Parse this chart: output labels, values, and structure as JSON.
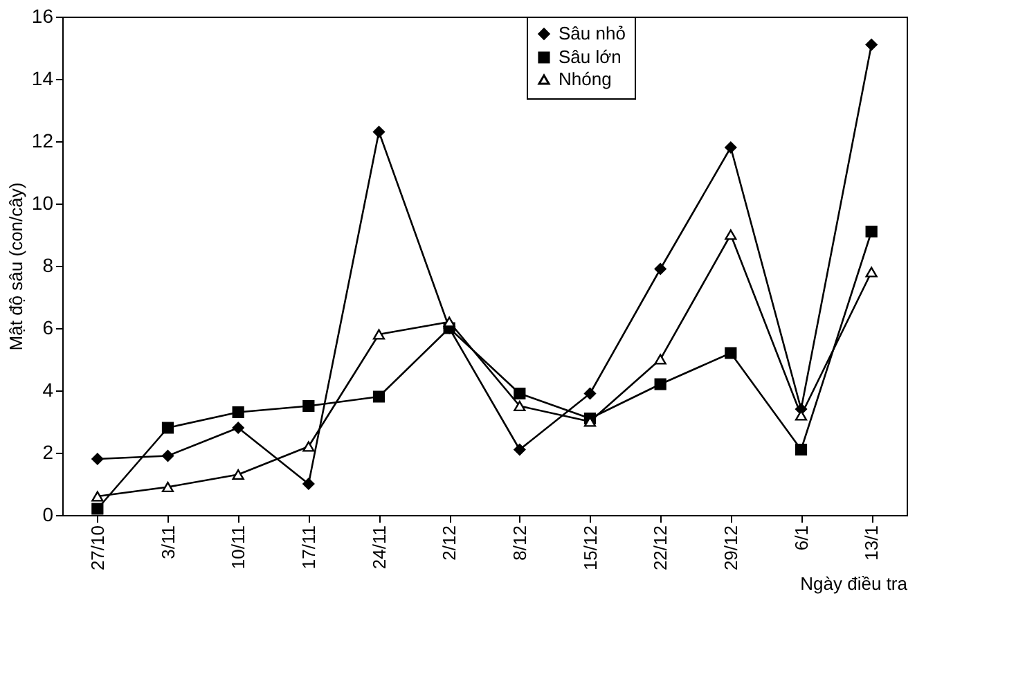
{
  "chart_data": {
    "type": "line",
    "xlabel": "Ngày điều tra",
    "ylabel": "Mật độ sâu (con/cây)",
    "categories": [
      "27/10",
      "3/11",
      "10/11",
      "17/11",
      "24/11",
      "2/12",
      "8/12",
      "15/12",
      "22/12",
      "29/12",
      "6/1",
      "13/1"
    ],
    "series": [
      {
        "name": "Sâu nhỏ",
        "color": "#000000",
        "marker": "diamond",
        "values": [
          1.8,
          1.9,
          2.8,
          1.0,
          12.3,
          6.0,
          2.1,
          3.9,
          7.9,
          11.8,
          3.4,
          15.1
        ]
      },
      {
        "name": "Sâu lớn",
        "color": "#000000",
        "marker": "square",
        "values": [
          0.2,
          2.8,
          3.3,
          3.5,
          3.8,
          6.0,
          3.9,
          3.1,
          4.2,
          5.2,
          2.1,
          9.1
        ]
      },
      {
        "name": "Nhóng",
        "color": "#000000",
        "marker": "triangle",
        "values": [
          0.6,
          0.9,
          1.3,
          2.2,
          5.8,
          6.2,
          3.5,
          3.0,
          5.0,
          9.0,
          3.2,
          7.8
        ]
      }
    ],
    "ylim": [
      0,
      16
    ],
    "yticks": [
      0,
      2,
      4,
      6,
      8,
      10,
      12,
      14,
      16
    ],
    "grid": false,
    "legend": "top",
    "line_style": "solid"
  }
}
